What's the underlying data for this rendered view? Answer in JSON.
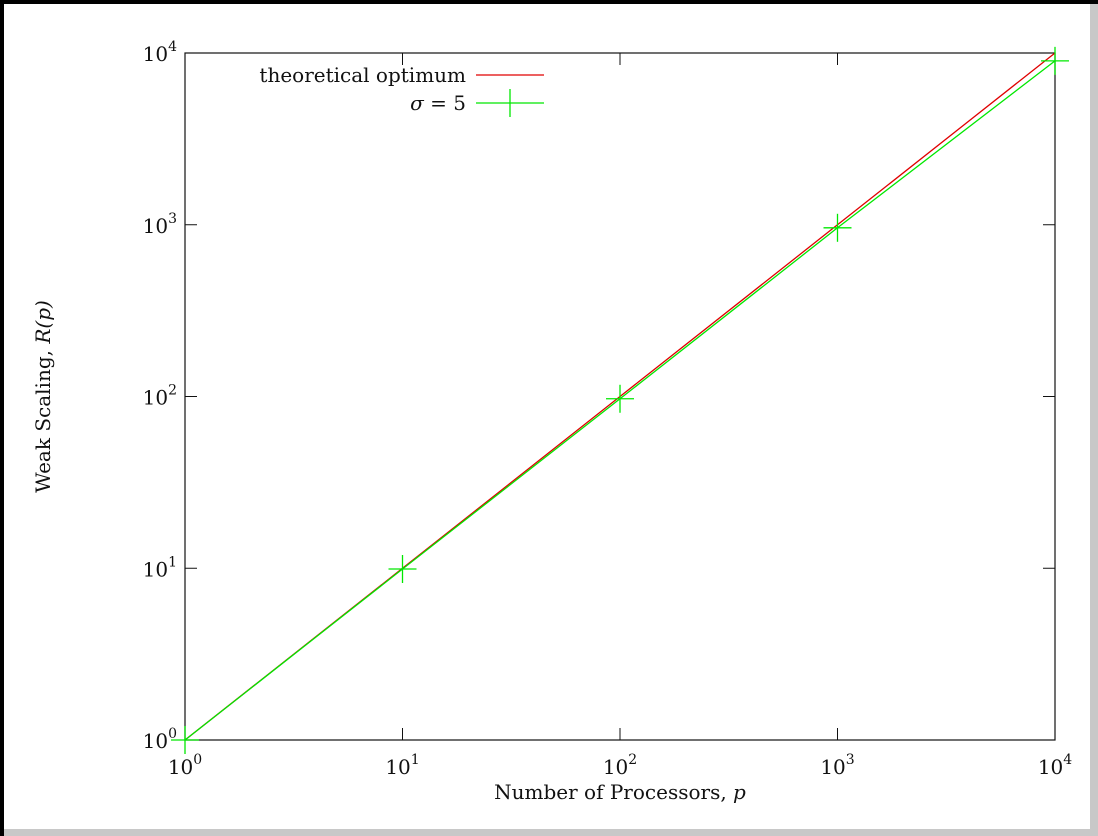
{
  "chart_data": {
    "type": "line",
    "xscale": "log",
    "yscale": "log",
    "xlim": [
      1,
      10000
    ],
    "ylim": [
      1,
      10000
    ],
    "xlabel": "Number of Processors, p",
    "ylabel": "Weak Scaling, R(p)",
    "xlabel_text": "Number of Processors, ",
    "xlabel_var": "p",
    "ylabel_text": "Weak Scaling, ",
    "ylabel_var": "R(p)",
    "x_ticks": [
      {
        "value": 1,
        "base": "10",
        "exp": "0"
      },
      {
        "value": 10,
        "base": "10",
        "exp": "1"
      },
      {
        "value": 100,
        "base": "10",
        "exp": "2"
      },
      {
        "value": 1000,
        "base": "10",
        "exp": "3"
      },
      {
        "value": 10000,
        "base": "10",
        "exp": "4"
      }
    ],
    "y_ticks": [
      {
        "value": 1,
        "base": "10",
        "exp": "0"
      },
      {
        "value": 10,
        "base": "10",
        "exp": "1"
      },
      {
        "value": 100,
        "base": "10",
        "exp": "2"
      },
      {
        "value": 1000,
        "base": "10",
        "exp": "3"
      },
      {
        "value": 10000,
        "base": "10",
        "exp": "4"
      }
    ],
    "legend_position": "top-left",
    "grid": false,
    "series": [
      {
        "name": "theoretical optimum",
        "color": "#e00000",
        "marker": "none",
        "x": [
          1,
          10,
          100,
          1000,
          10000
        ],
        "y": [
          1,
          10,
          100,
          1000,
          10000
        ]
      },
      {
        "name": "σ = 5",
        "name_var": "σ",
        "name_rest": " = 5",
        "color": "#00e800",
        "marker": "plus",
        "x": [
          1,
          10,
          100,
          1000,
          10000
        ],
        "y": [
          1,
          9.9,
          97,
          960,
          9000
        ]
      }
    ]
  }
}
